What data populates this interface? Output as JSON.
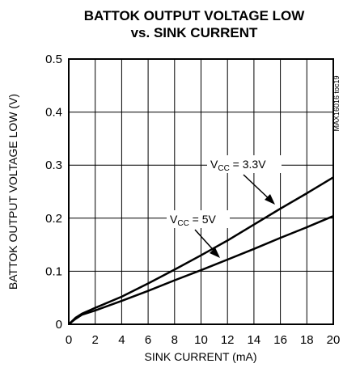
{
  "chart_data": {
    "type": "line",
    "title_line1": "BATTOK OUTPUT VOLTAGE LOW",
    "title_line2": "vs. SINK CURRENT",
    "xlabel": "SINK CURRENT (mA)",
    "ylabel": "BATTOK OUTPUT VOLTAGE LOW (V)",
    "xlim": [
      0,
      20
    ],
    "ylim": [
      0,
      0.5
    ],
    "xticks": [
      "0",
      "2",
      "4",
      "6",
      "8",
      "10",
      "12",
      "14",
      "16",
      "18",
      "20"
    ],
    "yticks": [
      "0",
      "0.1",
      "0.2",
      "0.3",
      "0.4",
      "0.5"
    ],
    "grid": true,
    "figure_code": "MAX16016 toc19",
    "series": [
      {
        "name_main": "V",
        "name_sub": "CC",
        "name_rest": " = 3.3V",
        "x": [
          0,
          0.5,
          1,
          2,
          4,
          6,
          8,
          10,
          12,
          14,
          16,
          18,
          20
        ],
        "y": [
          0,
          0.012,
          0.02,
          0.031,
          0.052,
          0.077,
          0.103,
          0.13,
          0.158,
          0.188,
          0.218,
          0.247,
          0.277
        ]
      },
      {
        "name_main": "V",
        "name_sub": "CC",
        "name_rest": " = 5V",
        "x": [
          0,
          0.5,
          1,
          2,
          4,
          6,
          8,
          10,
          12,
          14,
          16,
          18,
          20
        ],
        "y": [
          0,
          0.01,
          0.018,
          0.026,
          0.044,
          0.063,
          0.083,
          0.102,
          0.122,
          0.142,
          0.163,
          0.183,
          0.204
        ]
      }
    ]
  }
}
